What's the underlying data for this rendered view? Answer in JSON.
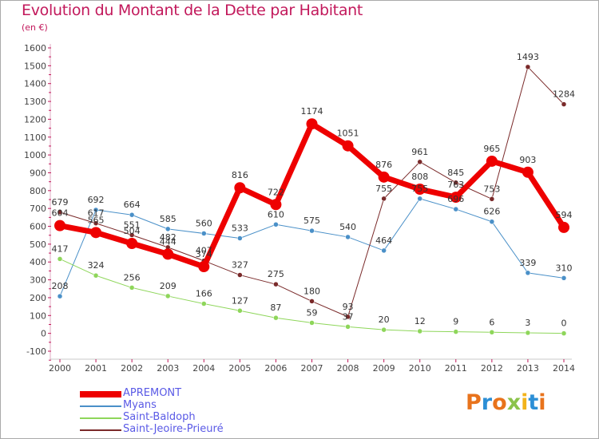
{
  "header": {
    "title": "Evolution du Montant de la Dette par Habitant",
    "unit": "(en €)"
  },
  "logo": {
    "text": "Proxiti",
    "colors": [
      "#e8731c",
      "#2c8fd6",
      "#e8731c",
      "#8bc34a",
      "#f2b31a",
      "#2c8fd6",
      "#e8731c"
    ]
  },
  "chart_data": {
    "type": "line",
    "x": [
      "2000",
      "2001",
      "2002",
      "2003",
      "2004",
      "2005",
      "2006",
      "2007",
      "2008",
      "2009",
      "2010",
      "2011",
      "2012",
      "2013",
      "2014"
    ],
    "ylim": [
      -100,
      1600
    ],
    "yticks": [
      -100,
      0,
      100,
      200,
      300,
      400,
      500,
      600,
      700,
      800,
      900,
      1000,
      1100,
      1200,
      1300,
      1400,
      1500,
      1600
    ],
    "grid": false,
    "legend": "bottom-left",
    "series": [
      {
        "name": "APREMONT",
        "color": "#ee0000",
        "width": 7,
        "marker": 7,
        "values": [
          604,
          565,
          504,
          444,
          374,
          816,
          722,
          1174,
          1051,
          876,
          808,
          763,
          965,
          903,
          594
        ]
      },
      {
        "name": "Myans",
        "color": "#4a90c8",
        "width": 1,
        "marker": 3,
        "values": [
          208,
          692,
          664,
          585,
          560,
          533,
          610,
          575,
          540,
          464,
          755,
          696,
          626,
          339,
          310
        ]
      },
      {
        "name": "Saint-Baldoph",
        "color": "#8ed65a",
        "width": 1,
        "marker": 3,
        "values": [
          417,
          324,
          256,
          209,
          166,
          127,
          87,
          59,
          37,
          20,
          12,
          9,
          6,
          3,
          0
        ]
      },
      {
        "name": "Saint-Jeoire-Prieuré",
        "color": "#7a2a2a",
        "width": 1,
        "marker": 3,
        "values": [
          679,
          617,
          551,
          482,
          407,
          327,
          275,
          180,
          93,
          755,
          961,
          845,
          753,
          1493,
          1284
        ]
      }
    ]
  }
}
